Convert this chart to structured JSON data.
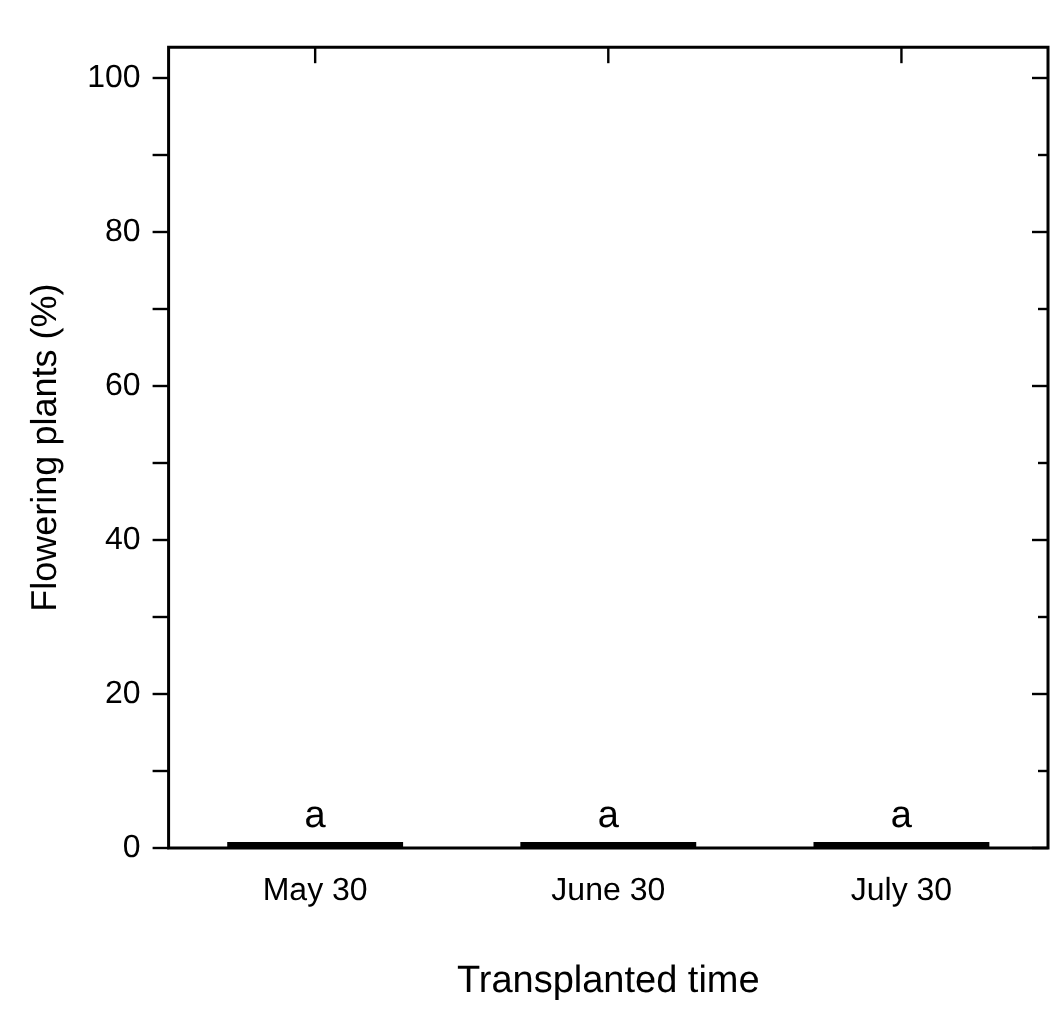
{
  "chart_data": {
    "type": "bar",
    "xlabel": "Transplanted time",
    "ylabel": "Flowering plants (%)",
    "categories": [
      "May 30",
      "June 30",
      "July 30"
    ],
    "values": [
      0,
      0,
      0
    ],
    "color": "#000000",
    "ylim": [
      0,
      104
    ],
    "yticks": [
      0,
      {
        "value": 10,
        "label": null
      },
      20,
      {
        "value": 30,
        "label": null
      },
      40,
      {
        "value": 50,
        "label": null
      },
      60,
      {
        "value": 70,
        "label": null
      },
      80,
      {
        "value": 90,
        "label": null
      },
      100
    ],
    "annotations": [
      {
        "text": "a",
        "x": "May 30",
        "y": 0
      },
      {
        "text": "a",
        "x": "June 30",
        "y": 0
      },
      {
        "text": "a",
        "x": "July 30",
        "y": 0
      }
    ],
    "grid": false,
    "legend": false
  }
}
